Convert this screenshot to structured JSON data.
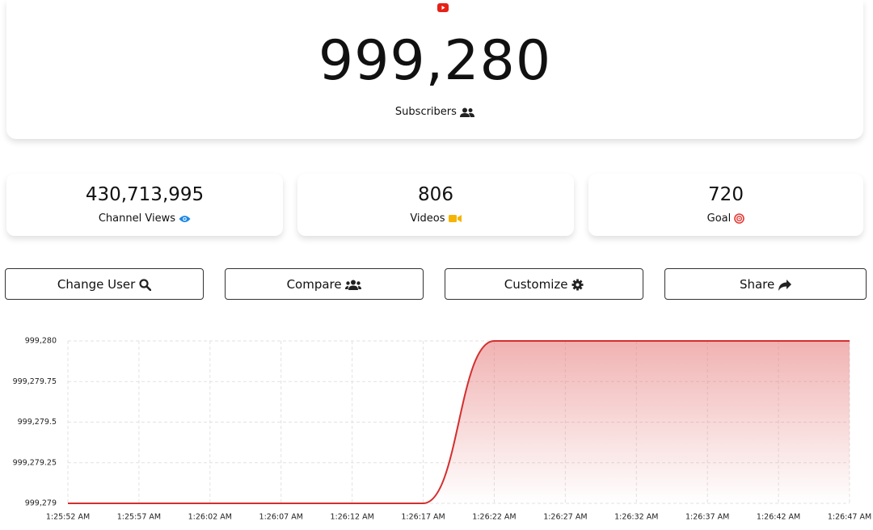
{
  "header": {
    "count": "999,280",
    "label": "Subscribers"
  },
  "stats": [
    {
      "value": "430,713,995",
      "label": "Channel Views"
    },
    {
      "value": "806",
      "label": "Videos"
    },
    {
      "value": "720",
      "label": "Goal"
    }
  ],
  "buttons": [
    "Change User",
    "Compare",
    "Customize",
    "Share"
  ],
  "chart_data": {
    "type": "line",
    "categories": [
      "1:25:52 AM",
      "1:25:57 AM",
      "1:26:02 AM",
      "1:26:07 AM",
      "1:26:12 AM",
      "1:26:17 AM",
      "1:26:22 AM",
      "1:26:27 AM",
      "1:26:32 AM",
      "1:26:37 AM",
      "1:26:42 AM",
      "1:26:47 AM"
    ],
    "values": [
      999279,
      999279,
      999279,
      999279,
      999279,
      999279,
      999280,
      999280,
      999280,
      999280,
      999280,
      999280
    ],
    "color": "#d32f2f",
    "ylim": [
      999279,
      999280
    ],
    "yticks": [
      {
        "value": 999279,
        "label": "999,279"
      },
      {
        "value": 999279.25,
        "label": "999,279.25"
      },
      {
        "value": 999279.5,
        "label": "999,279.5"
      },
      {
        "value": 999279.75,
        "label": "999,279.75"
      },
      {
        "value": 999280,
        "label": "999,280"
      }
    ],
    "grid": true
  }
}
